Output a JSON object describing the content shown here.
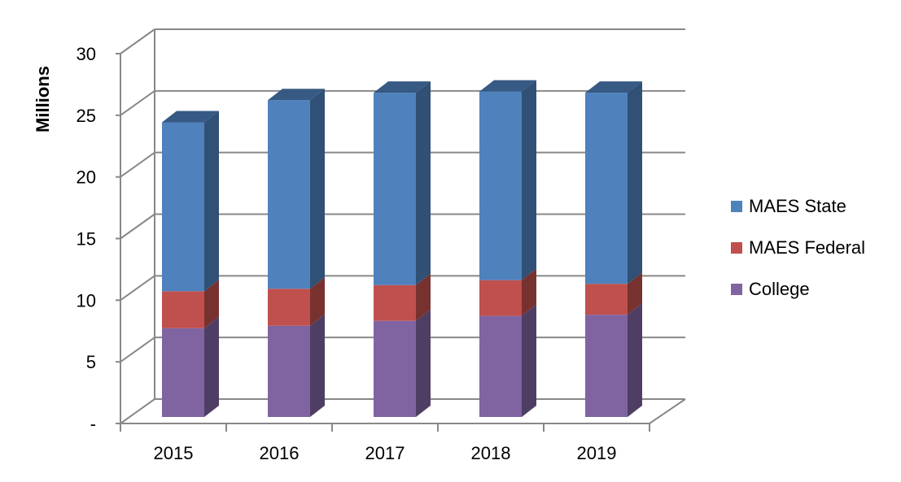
{
  "chart_data": {
    "type": "bar",
    "stacked": true,
    "three_d": true,
    "categories": [
      "2015",
      "2016",
      "2017",
      "2018",
      "2019"
    ],
    "series": [
      {
        "name": "College",
        "values": [
          7.2,
          7.4,
          7.8,
          8.2,
          8.3
        ],
        "color": "#8064a2"
      },
      {
        "name": "MAES Federal",
        "values": [
          3.0,
          3.0,
          2.9,
          2.9,
          2.5
        ],
        "color": "#c0504d"
      },
      {
        "name": "MAES State",
        "values": [
          13.7,
          15.3,
          15.6,
          15.3,
          15.5
        ],
        "color": "#4f81bd"
      }
    ],
    "ylabel": "Millions",
    "ylim": [
      0,
      30
    ],
    "yticks": [
      0,
      5,
      10,
      15,
      20,
      25,
      30
    ],
    "ytick_labels": [
      "-",
      "5",
      "10",
      "15",
      "20",
      "25",
      "30"
    ],
    "grid": true,
    "legend_position": "right",
    "legend_order": [
      "MAES State",
      "MAES Federal",
      "College"
    ]
  }
}
